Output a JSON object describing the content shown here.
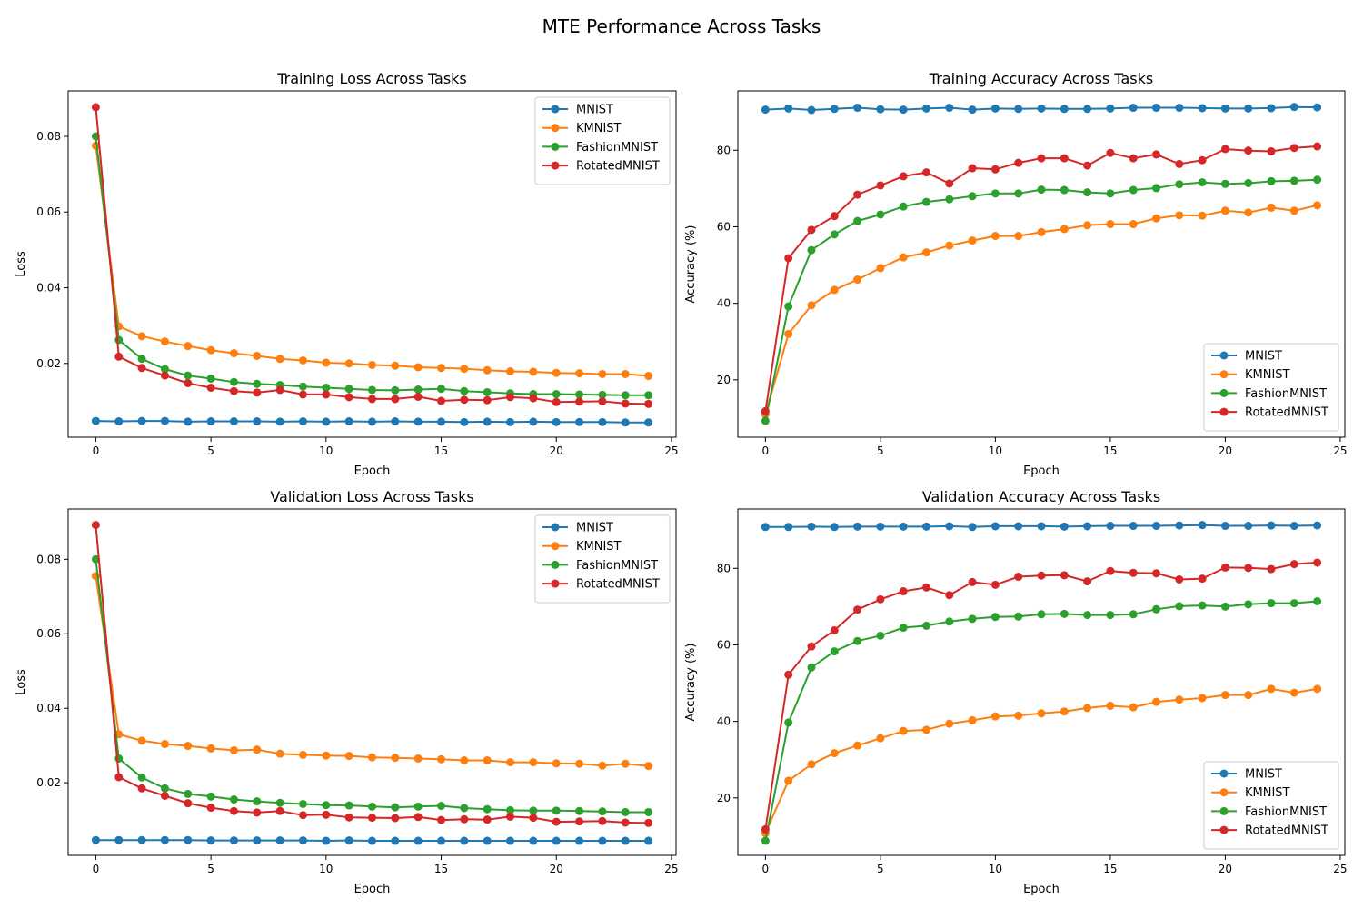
{
  "figure": {
    "title": "MTE Performance Across Tasks",
    "colors": {
      "MNIST": "#1f77b4",
      "KMNIST": "#ff7f0e",
      "FashionMNIST": "#2ca02c",
      "RotatedMNIST": "#d62728"
    }
  },
  "chart_data": [
    {
      "type": "line",
      "title": "Training Loss Across Tasks",
      "xlabel": "Epoch",
      "ylabel": "Loss",
      "xlim": [
        -1.2,
        25.2
      ],
      "ylim": [
        0.0005,
        0.092
      ],
      "xticks": [
        0,
        5,
        10,
        15,
        20,
        25
      ],
      "yticks": [
        0.02,
        0.04,
        0.06,
        0.08
      ],
      "ytick_labels": [
        "0.02",
        "0.04",
        "0.06",
        "0.08"
      ],
      "legend": "top-right",
      "x": [
        0,
        1,
        2,
        3,
        4,
        5,
        6,
        7,
        8,
        9,
        10,
        11,
        12,
        13,
        14,
        15,
        16,
        17,
        18,
        19,
        20,
        21,
        22,
        23,
        24
      ],
      "series": [
        {
          "name": "MNIST",
          "values": [
            0.0048,
            0.0047,
            0.0048,
            0.0048,
            0.0046,
            0.0047,
            0.0047,
            0.0047,
            0.0046,
            0.0047,
            0.0046,
            0.0047,
            0.0046,
            0.0047,
            0.0046,
            0.0046,
            0.0045,
            0.0046,
            0.0045,
            0.0046,
            0.0045,
            0.0045,
            0.0045,
            0.0044,
            0.0044
          ]
        },
        {
          "name": "KMNIST",
          "values": [
            0.0775,
            0.0298,
            0.0272,
            0.0258,
            0.0246,
            0.0235,
            0.0227,
            0.022,
            0.0212,
            0.0208,
            0.0202,
            0.02,
            0.0196,
            0.0194,
            0.019,
            0.0188,
            0.0186,
            0.0182,
            0.0179,
            0.0178,
            0.0175,
            0.0174,
            0.0172,
            0.0172,
            0.0167
          ]
        },
        {
          "name": "FashionMNIST",
          "values": [
            0.08,
            0.0262,
            0.0212,
            0.0185,
            0.0168,
            0.016,
            0.0151,
            0.0146,
            0.0143,
            0.0139,
            0.0136,
            0.0133,
            0.013,
            0.0129,
            0.0131,
            0.0133,
            0.0127,
            0.0124,
            0.0121,
            0.0119,
            0.0119,
            0.0118,
            0.0117,
            0.0116,
            0.0116
          ]
        },
        {
          "name": "RotatedMNIST",
          "values": [
            0.0877,
            0.0218,
            0.0188,
            0.0168,
            0.0148,
            0.0136,
            0.0127,
            0.0123,
            0.013,
            0.0118,
            0.0118,
            0.0111,
            0.0106,
            0.0106,
            0.0112,
            0.0101,
            0.0104,
            0.0103,
            0.0111,
            0.0108,
            0.0098,
            0.0099,
            0.01,
            0.0094,
            0.0093
          ]
        }
      ]
    },
    {
      "type": "line",
      "title": "Training Accuracy Across Tasks",
      "xlabel": "Epoch",
      "ylabel": "Accuracy (%)",
      "xlim": [
        -1.2,
        25.2
      ],
      "ylim": [
        5,
        95.5
      ],
      "xticks": [
        0,
        5,
        10,
        15,
        20,
        25
      ],
      "yticks": [
        20,
        40,
        60,
        80
      ],
      "ytick_labels": [
        "20",
        "40",
        "60",
        "80"
      ],
      "legend": "bottom-right",
      "x": [
        0,
        1,
        2,
        3,
        4,
        5,
        6,
        7,
        8,
        9,
        10,
        11,
        12,
        13,
        14,
        15,
        16,
        17,
        18,
        19,
        20,
        21,
        22,
        23,
        24
      ],
      "series": [
        {
          "name": "MNIST",
          "values": [
            90.6,
            90.9,
            90.5,
            90.8,
            91.1,
            90.7,
            90.6,
            90.9,
            91.1,
            90.6,
            90.9,
            90.8,
            90.9,
            90.8,
            90.8,
            90.9,
            91.1,
            91.1,
            91.1,
            91.0,
            90.9,
            90.9,
            91.0,
            91.3,
            91.2
          ]
        },
        {
          "name": "KMNIST",
          "values": [
            11.0,
            32.0,
            39.5,
            43.5,
            46.2,
            49.2,
            52.0,
            53.3,
            55.1,
            56.4,
            57.6,
            57.6,
            58.6,
            59.4,
            60.4,
            60.7,
            60.7,
            62.2,
            63.0,
            62.9,
            64.2,
            63.7,
            65.0,
            64.2,
            65.6
          ]
        },
        {
          "name": "FashionMNIST",
          "values": [
            9.3,
            39.2,
            53.9,
            58.0,
            61.5,
            63.2,
            65.3,
            66.5,
            67.2,
            68.0,
            68.7,
            68.7,
            69.7,
            69.6,
            69.0,
            68.7,
            69.6,
            70.1,
            71.1,
            71.6,
            71.2,
            71.4,
            71.9,
            72.0,
            72.3
          ]
        },
        {
          "name": "RotatedMNIST",
          "values": [
            11.8,
            51.8,
            59.2,
            62.8,
            68.4,
            70.8,
            73.2,
            74.2,
            71.3,
            75.3,
            75.0,
            76.7,
            77.9,
            77.9,
            76.0,
            79.3,
            77.9,
            78.9,
            76.4,
            77.4,
            80.3,
            79.9,
            79.7,
            80.6,
            81.0
          ]
        }
      ]
    },
    {
      "type": "line",
      "title": "Validation Loss Across Tasks",
      "xlabel": "Epoch",
      "ylabel": "Loss",
      "xlim": [
        -1.2,
        25.2
      ],
      "ylim": [
        0.0005,
        0.0935
      ],
      "xticks": [
        0,
        5,
        10,
        15,
        20,
        25
      ],
      "yticks": [
        0.02,
        0.04,
        0.06,
        0.08
      ],
      "ytick_labels": [
        "0.02",
        "0.04",
        "0.06",
        "0.08"
      ],
      "legend": "top-right",
      "x": [
        0,
        1,
        2,
        3,
        4,
        5,
        6,
        7,
        8,
        9,
        10,
        11,
        12,
        13,
        14,
        15,
        16,
        17,
        18,
        19,
        20,
        21,
        22,
        23,
        24
      ],
      "series": [
        {
          "name": "MNIST",
          "values": [
            0.0046,
            0.0046,
            0.0046,
            0.0046,
            0.0046,
            0.0045,
            0.0045,
            0.0045,
            0.0045,
            0.0045,
            0.0044,
            0.0045,
            0.0044,
            0.0044,
            0.0044,
            0.0044,
            0.0044,
            0.0044,
            0.0044,
            0.0044,
            0.0044,
            0.0044,
            0.0044,
            0.0044,
            0.0044
          ]
        },
        {
          "name": "KMNIST",
          "values": [
            0.0755,
            0.033,
            0.0313,
            0.0304,
            0.0299,
            0.0292,
            0.0287,
            0.0289,
            0.0278,
            0.0275,
            0.0273,
            0.0272,
            0.0268,
            0.0267,
            0.0265,
            0.0263,
            0.026,
            0.026,
            0.0255,
            0.0255,
            0.0252,
            0.0251,
            0.0246,
            0.0251,
            0.0245
          ]
        },
        {
          "name": "FashionMNIST",
          "values": [
            0.08,
            0.0265,
            0.0214,
            0.0185,
            0.017,
            0.0163,
            0.0155,
            0.015,
            0.0146,
            0.0143,
            0.014,
            0.0139,
            0.0136,
            0.0134,
            0.0136,
            0.0138,
            0.0132,
            0.0129,
            0.0126,
            0.0125,
            0.0125,
            0.0124,
            0.0123,
            0.0121,
            0.0121
          ]
        },
        {
          "name": "RotatedMNIST",
          "values": [
            0.0892,
            0.0215,
            0.0185,
            0.0165,
            0.0145,
            0.0133,
            0.0124,
            0.012,
            0.0124,
            0.0113,
            0.0114,
            0.0107,
            0.0106,
            0.0105,
            0.0108,
            0.01,
            0.0102,
            0.0101,
            0.0109,
            0.0106,
            0.0095,
            0.0096,
            0.0097,
            0.0093,
            0.0092
          ]
        }
      ]
    },
    {
      "type": "line",
      "title": "Validation Accuracy Across Tasks",
      "xlabel": "Epoch",
      "ylabel": "Accuracy (%)",
      "xlim": [
        -1.2,
        25.2
      ],
      "ylim": [
        5,
        95.5
      ],
      "xticks": [
        0,
        5,
        10,
        15,
        20,
        25
      ],
      "yticks": [
        20,
        40,
        60,
        80
      ],
      "ytick_labels": [
        "20",
        "40",
        "60",
        "80"
      ],
      "legend": "bottom-right",
      "x": [
        0,
        1,
        2,
        3,
        4,
        5,
        6,
        7,
        8,
        9,
        10,
        11,
        12,
        13,
        14,
        15,
        16,
        17,
        18,
        19,
        20,
        21,
        22,
        23,
        24
      ],
      "series": [
        {
          "name": "MNIST",
          "values": [
            90.8,
            90.8,
            90.9,
            90.8,
            90.9,
            90.9,
            90.9,
            90.9,
            91.0,
            90.8,
            91.0,
            91.0,
            91.0,
            90.9,
            91.0,
            91.1,
            91.1,
            91.1,
            91.2,
            91.3,
            91.1,
            91.1,
            91.2,
            91.1,
            91.2
          ]
        },
        {
          "name": "KMNIST",
          "values": [
            10.8,
            24.5,
            28.8,
            31.7,
            33.7,
            35.6,
            37.5,
            37.8,
            39.4,
            40.3,
            41.3,
            41.5,
            42.1,
            42.6,
            43.5,
            44.1,
            43.7,
            45.1,
            45.7,
            46.1,
            46.9,
            46.9,
            48.5,
            47.5,
            48.5
          ]
        },
        {
          "name": "FashionMNIST",
          "values": [
            8.8,
            39.7,
            54.1,
            58.3,
            61.0,
            62.4,
            64.5,
            65.0,
            66.1,
            66.8,
            67.3,
            67.4,
            68.0,
            68.1,
            67.8,
            67.8,
            68.0,
            69.3,
            70.1,
            70.3,
            70.0,
            70.6,
            70.9,
            70.9,
            71.4
          ]
        },
        {
          "name": "RotatedMNIST",
          "values": [
            11.8,
            52.2,
            59.6,
            63.8,
            69.2,
            71.9,
            74.0,
            75.0,
            73.0,
            76.4,
            75.7,
            77.8,
            78.1,
            78.2,
            76.6,
            79.3,
            78.8,
            78.7,
            77.1,
            77.3,
            80.2,
            80.1,
            79.8,
            81.1,
            81.5
          ]
        }
      ]
    }
  ]
}
